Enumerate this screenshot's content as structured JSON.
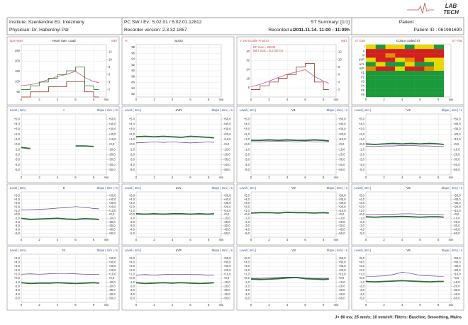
{
  "header": {
    "institute": "Institute: Szentendrei Eü. Intézmény",
    "physician": "Physician: Dr. Haberényi Pál",
    "software": "PC SW / Ev.: 5.02.01 / 5.02.01.12812",
    "recorder": "Recorder version: 2.3.32.1857",
    "summary": "ST Summary: [1/1]",
    "recorded_label": "Recorded at :",
    "recorded": "2011.11.14. 11:00 - 11:09h",
    "patient": "Patient :",
    "patient_id": "Patient ID : 061981690"
  },
  "logo": [
    "LAB",
    "TECH"
  ],
  "trace_x": [
    0,
    1,
    2,
    3,
    4,
    5,
    6,
    7,
    8,
    8.6
  ],
  "xlim": [
    0,
    9.4
  ],
  "xticks": [
    0,
    2,
    4,
    6,
    8
  ],
  "xunit": "min",
  "top_panels": [
    {
      "kind": "plot",
      "left_label": "bpm Watt",
      "title": "Heart rate, Load",
      "right_label": "MET",
      "ylim": [
        25,
        280
      ],
      "yticks": [
        50,
        100,
        150,
        200,
        250
      ],
      "y2lim": [
        0,
        14
      ],
      "y2ticks": [
        2,
        4,
        6,
        8,
        10,
        12
      ],
      "series": [
        {
          "color": "#d0508a",
          "values": [
            80,
            85,
            95,
            110,
            125,
            135,
            150,
            120,
            100,
            95
          ]
        },
        {
          "color": "#8b2a1a",
          "step": true,
          "values": [
            25,
            50,
            50,
            75,
            75,
            100,
            100,
            50,
            25,
            25
          ]
        },
        {
          "color": "#2a7a2a",
          "step": true,
          "axis": "y2",
          "values": [
            2,
            3,
            4,
            5,
            6,
            7,
            8,
            3,
            2,
            2
          ]
        }
      ]
    },
    {
      "kind": "plot",
      "left_label": "%",
      "title": "SpO2",
      "ylim": [
        81,
        99
      ],
      "yticks": [
        82,
        84,
        86,
        88,
        90,
        92,
        94,
        96,
        98
      ],
      "series": []
    },
    {
      "kind": "plot",
      "left_label": "V 100 Double Product",
      "right_label": "MET",
      "annotations": [
        "DP max = 26649",
        "MET max = 9,2 (86 %)"
      ],
      "ylim": [
        0,
        46
      ],
      "yticks": [
        8,
        16,
        24,
        32,
        40
      ],
      "y2lim": [
        0,
        14
      ],
      "y2ticks": [
        2,
        4,
        6,
        8,
        10,
        12
      ],
      "series": [
        {
          "color": "#d0508a",
          "values": [
            9,
            11,
            14,
            17,
            20,
            22,
            24,
            18,
            14,
            12
          ]
        },
        {
          "color": "#8b3a2a",
          "step": true,
          "axis": "y2",
          "values": [
            2,
            3,
            4,
            5,
            6,
            8,
            9,
            4,
            2,
            2
          ]
        }
      ]
    },
    {
      "kind": "heatmap",
      "left_label": "ST Gain",
      "title": "Colour coded ST",
      "right_label": "ST Plus",
      "leads": [
        "I",
        "II",
        "III",
        "aVR",
        "aVL",
        "aVF",
        "V1",
        "V2",
        "V3",
        "V4",
        "V5",
        "V6"
      ],
      "cells": [
        [
          "#e8d800",
          "#1a9a3a",
          "#e8d800",
          "#e8d800",
          "#1a9a3a",
          "#e8d800",
          "#e8d800",
          "#1a9a3a"
        ],
        [
          "#d02020",
          "#d02020",
          "#d02020",
          "#d02020",
          "#d02020",
          "#d02020",
          "#d02020",
          "#d02020"
        ],
        [
          "#d02020",
          "#d02020",
          "#e88a00",
          "#d02020",
          "#d02020",
          "#d02020",
          "#d02020",
          "#d02020"
        ],
        [
          "#e8d800",
          "#d02020",
          "#d02020",
          "#e8d800",
          "#e88a00",
          "#d02020",
          "#e8d800",
          "#e8d800"
        ],
        [
          "#1a9a3a",
          "#e8d800",
          "#1a9a3a",
          "#1a9a3a",
          "#e8d800",
          "#1a9a3a",
          "#1a9a3a",
          "#e8d800"
        ],
        [
          "#e88a00",
          "#d02020",
          "#d02020",
          "#e8d800",
          "#d02020",
          "#d02020",
          "#e88a00",
          "#e8d800"
        ],
        [
          "#1a9a3a",
          "#1a9a3a",
          "#1a9a3a",
          "#1a9a3a",
          "#1a9a3a",
          "#1a9a3a",
          "#1a9a3a",
          "#1a9a3a"
        ],
        [
          "#1a9a3a",
          "#1a9a3a",
          "#1a9a3a",
          "#1a9a3a",
          "#1a9a3a",
          "#1a9a3a",
          "#1a9a3a",
          "#1a9a3a"
        ],
        [
          "#1a9a3a",
          "#1a9a3a",
          "#1a9a3a",
          "#1a9a3a",
          "#1a9a3a",
          "#1a9a3a",
          "#1a9a3a",
          "#1a9a3a"
        ],
        [
          "#1a9a3a",
          "#1a9a3a",
          "#1a9a3a",
          "#1a9a3a",
          "#1a9a3a",
          "#1a9a3a",
          "#1a9a3a",
          "#1a9a3a"
        ],
        [
          "#1a9a3a",
          "#1a9a3a",
          "#1a9a3a",
          "#1a9a3a",
          "#1a9a3a",
          "#1a9a3a",
          "#1a9a3a",
          "#1a9a3a"
        ],
        [
          "#1a9a3a",
          "#1a9a3a",
          "#1a9a3a",
          "#1a9a3a",
          "#1a9a3a",
          "#1a9a3a",
          "#1a9a3a",
          "#1a9a3a"
        ]
      ]
    }
  ],
  "st_common": {
    "level_label": "Level ( mm )",
    "slope_label": "Slope ( mm ) / s",
    "level_color": "#2e6b3a",
    "slope_color": "#5a3a8a",
    "ylim": [
      -6,
      6
    ],
    "y2lim": [
      -60,
      60
    ],
    "level_ticks": [
      {
        "value": 5,
        "label": "+5,0"
      },
      {
        "value": 4,
        "label": "+4,0"
      },
      {
        "value": 3,
        "label": "+3,0"
      },
      {
        "value": 2,
        "label": "+2,0"
      },
      {
        "value": 1,
        "label": "+1,0"
      },
      {
        "value": 0,
        "label": "+0,0"
      },
      {
        "value": -1,
        "label": "-1,0"
      },
      {
        "value": -2,
        "label": "-2,0"
      },
      {
        "value": -3,
        "label": "-3,0"
      },
      {
        "value": -4,
        "label": "-4,0"
      },
      {
        "value": -5,
        "label": "-5,0"
      }
    ],
    "slope_ticks": [
      {
        "value": 50,
        "label": "+50,0"
      },
      {
        "value": 40,
        "label": "+40,0"
      },
      {
        "value": 30,
        "label": "+30,0"
      },
      {
        "value": 20,
        "label": "+20,0"
      },
      {
        "value": 10,
        "label": "+10,0"
      },
      {
        "value": 0,
        "label": "+0,0"
      },
      {
        "value": -10,
        "label": "-10,0"
      },
      {
        "value": -20,
        "label": "-20,0"
      },
      {
        "value": -30,
        "label": "-30,0"
      },
      {
        "value": -40,
        "label": "-40,0"
      },
      {
        "value": -50,
        "label": "-50,0"
      }
    ]
  },
  "st_panels": [
    {
      "lead": "I",
      "level": [
        -0.6,
        -0.8,
        null,
        null,
        null,
        null,
        -0.3,
        -0.3,
        -0.4,
        null
      ],
      "slope": [
        null,
        null,
        null,
        null,
        null,
        null,
        null,
        null,
        null,
        null
      ]
    },
    {
      "lead": "aVR",
      "level": [
        1.5,
        1.6,
        1.5,
        1.6,
        1.5,
        1.4,
        1.6,
        1.5,
        1.4,
        1.3
      ],
      "slope": [
        3,
        4,
        5,
        4,
        5,
        4,
        3,
        4,
        5,
        4
      ]
    },
    {
      "lead": "V1",
      "level": [
        0.8,
        0.8,
        0.9,
        0.8,
        0.9,
        0.8,
        0.8,
        0.9,
        0.8,
        0.7
      ],
      "slope": [
        5,
        5,
        6,
        6,
        6,
        5,
        6,
        5,
        5,
        5
      ]
    },
    {
      "lead": "V4",
      "level": [
        0.1,
        0.0,
        0.1,
        0.2,
        0.1,
        0.2,
        0.1,
        0.2,
        0.1,
        0.0
      ],
      "slope": [
        -4,
        -4,
        -3,
        -3,
        -2,
        -2,
        -3,
        -3,
        -4,
        -4
      ]
    },
    {
      "lead": "II",
      "level": [
        -1.0,
        -1.3,
        -1.2,
        -1.1,
        -1.0,
        -1.2,
        -1.3,
        -1.1,
        -1.2,
        -1.3
      ],
      "slope": [
        12,
        13,
        14,
        15,
        17,
        18,
        21,
        19,
        16,
        15
      ]
    },
    {
      "lead": "aVL",
      "level": [
        0.2,
        0.1,
        0.2,
        0.1,
        0.2,
        0.2,
        0.1,
        0.2,
        0.1,
        0.2
      ],
      "slope": [
        2,
        2,
        2,
        2,
        2,
        2,
        2,
        2,
        2,
        2
      ]
    },
    {
      "lead": "V2",
      "level": [
        0.4,
        0.5,
        0.5,
        0.4,
        0.6,
        0.5,
        0.5,
        0.4,
        0.5,
        0.4
      ],
      "slope": [
        5,
        5,
        5,
        5,
        6,
        5,
        5,
        5,
        5,
        5
      ]
    },
    {
      "lead": "V5",
      "level": [
        -0.6,
        -0.7,
        -0.6,
        -0.6,
        -0.5,
        -0.6,
        -0.7,
        -0.6,
        -0.6,
        -0.7
      ],
      "slope": [
        -1,
        0,
        0,
        1,
        2,
        2,
        1,
        0,
        0,
        -1
      ]
    },
    {
      "lead": "III",
      "level": [
        -1.1,
        -1.3,
        -1.2,
        -1.2,
        -1.1,
        -1.2,
        -1.3,
        -1.2,
        -1.1,
        -1.2
      ],
      "slope": [
        10,
        11,
        10,
        11,
        12,
        12,
        11,
        10,
        10,
        10
      ]
    },
    {
      "lead": "aVF",
      "level": [
        -1.1,
        -1.3,
        -1.2,
        -1.1,
        -1.2,
        -1.1,
        -1.2,
        -1.3,
        -1.2,
        -1.1
      ],
      "slope": [
        8,
        9,
        8,
        9,
        10,
        10,
        9,
        9,
        8,
        8
      ]
    },
    {
      "lead": "V3",
      "level": [
        -0.2,
        -0.3,
        -0.2,
        -0.1,
        0.1,
        0.2,
        -0.1,
        -0.2,
        -0.3,
        -0.2
      ],
      "slope": [
        0,
        0,
        1,
        2,
        3,
        3,
        1,
        0,
        0,
        0
      ]
    },
    {
      "lead": "V6",
      "level": [
        -0.8,
        -0.9,
        -0.8,
        -0.7,
        -0.6,
        -0.7,
        -0.8,
        -0.9,
        -0.8,
        -0.8
      ],
      "slope": [
        5,
        5,
        6,
        9,
        15,
        12,
        7,
        6,
        5,
        5
      ]
    }
  ],
  "footer": "J+ 80 ms;  25 mm/s;  10 mm/mV;  Filters: Baseline, Smoothing, Mains"
}
